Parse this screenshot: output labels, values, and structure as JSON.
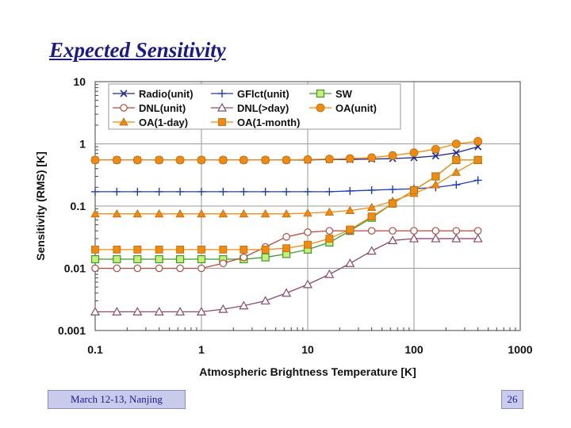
{
  "slide": {
    "title": "Expected Sensitivity",
    "footer_left": "March 12-13, Nanjing",
    "page_number": "26"
  },
  "chart_data": {
    "type": "line",
    "xlabel": "Atmospheric Brightness Temperature [K]",
    "ylabel": "Sensitivity (RMS) [K]",
    "x_scale": "log",
    "y_scale": "log",
    "xlim": [
      0.1,
      1000
    ],
    "ylim": [
      0.001,
      10
    ],
    "x_ticks": [
      "0.1",
      "1",
      "10",
      "100",
      "1000"
    ],
    "y_ticks": [
      "10",
      "1",
      "0.1",
      "0.01",
      "0.001"
    ],
    "legend_position": "top-left",
    "grid": true,
    "x": [
      0.1,
      0.16,
      0.25,
      0.4,
      0.63,
      1.0,
      1.6,
      2.5,
      4.0,
      6.3,
      10,
      16,
      25,
      40,
      63,
      100,
      160,
      250,
      400
    ],
    "series": [
      {
        "name": "Radio(unit)",
        "marker": "x",
        "color": "#1f2a8a",
        "values": [
          0.55,
          0.55,
          0.55,
          0.55,
          0.55,
          0.55,
          0.55,
          0.55,
          0.55,
          0.55,
          0.55,
          0.56,
          0.56,
          0.57,
          0.58,
          0.6,
          0.64,
          0.72,
          0.9
        ]
      },
      {
        "name": "GFlct(unit)",
        "marker": "plus",
        "color": "#1f3fb0",
        "values": [
          0.17,
          0.17,
          0.17,
          0.17,
          0.17,
          0.17,
          0.17,
          0.17,
          0.17,
          0.17,
          0.17,
          0.17,
          0.175,
          0.18,
          0.185,
          0.19,
          0.2,
          0.22,
          0.26
        ]
      },
      {
        "name": "SW",
        "marker": "square-open",
        "color": "#3c9a2c",
        "fill": "#c8ee7a",
        "values": [
          0.014,
          0.014,
          0.014,
          0.014,
          0.014,
          0.014,
          0.014,
          0.014,
          0.015,
          0.017,
          0.02,
          0.026,
          0.04,
          0.065,
          0.11,
          0.18,
          0.3,
          0.55,
          0.55
        ]
      },
      {
        "name": "DNL(unit)",
        "marker": "circle-open",
        "color": "#b34a3a",
        "values": [
          0.01,
          0.01,
          0.01,
          0.01,
          0.01,
          0.01,
          0.012,
          0.015,
          0.022,
          0.032,
          0.038,
          0.04,
          0.04,
          0.04,
          0.04,
          0.04,
          0.04,
          0.04,
          0.04
        ]
      },
      {
        "name": "DNL(>day)",
        "marker": "triangle-open",
        "color": "#8a4a6a",
        "values": [
          0.002,
          0.002,
          0.002,
          0.002,
          0.002,
          0.002,
          0.0022,
          0.0025,
          0.003,
          0.004,
          0.0055,
          0.008,
          0.012,
          0.019,
          0.028,
          0.03,
          0.03,
          0.03,
          0.03
        ]
      },
      {
        "name": "OA(unit)",
        "marker": "circle-filled",
        "color": "#f08a10",
        "values": [
          0.55,
          0.55,
          0.55,
          0.55,
          0.55,
          0.55,
          0.55,
          0.55,
          0.55,
          0.55,
          0.56,
          0.57,
          0.58,
          0.6,
          0.65,
          0.72,
          0.82,
          1.0,
          1.1
        ]
      },
      {
        "name": "OA(1-day)",
        "marker": "triangle-filled",
        "color": "#f08a10",
        "values": [
          0.075,
          0.075,
          0.075,
          0.075,
          0.075,
          0.075,
          0.075,
          0.075,
          0.075,
          0.075,
          0.077,
          0.08,
          0.085,
          0.095,
          0.12,
          0.16,
          0.22,
          0.35,
          0.55
        ]
      },
      {
        "name": "OA(1-month)",
        "marker": "square-filled",
        "color": "#f08a10",
        "values": [
          0.02,
          0.02,
          0.02,
          0.02,
          0.02,
          0.02,
          0.02,
          0.02,
          0.02,
          0.021,
          0.024,
          0.03,
          0.042,
          0.068,
          0.11,
          0.18,
          0.3,
          0.55,
          0.55
        ]
      }
    ]
  }
}
